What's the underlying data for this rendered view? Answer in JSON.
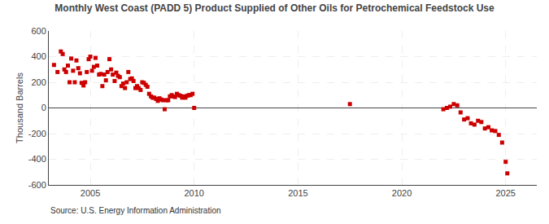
{
  "chart_data": {
    "type": "scatter",
    "title": "Monthly West Coast (PADD 5) Product Supplied of Other Oils for Petrochemical Feedstock Use",
    "ylabel": "Thousand Barrels",
    "annotations": [
      "Source: U.S. Energy Information Administration"
    ],
    "color": "#cc0000",
    "marker": "square",
    "grid": true,
    "xlim": [
      2003.0,
      2026.5
    ],
    "ylim": [
      -600,
      600
    ],
    "xticks": [
      2005,
      2010,
      2015,
      2020,
      2025
    ],
    "yticks": [
      -600,
      -400,
      -200,
      0,
      200,
      400,
      600
    ],
    "x": [
      2003.25,
      2003.42,
      2003.58,
      2003.67,
      2003.75,
      2003.83,
      2003.92,
      2004.0,
      2004.08,
      2004.17,
      2004.25,
      2004.33,
      2004.42,
      2004.5,
      2004.58,
      2004.67,
      2004.75,
      2004.83,
      2004.92,
      2005.0,
      2005.08,
      2005.17,
      2005.25,
      2005.33,
      2005.42,
      2005.5,
      2005.58,
      2005.67,
      2005.75,
      2005.83,
      2005.92,
      2006.0,
      2006.08,
      2006.17,
      2006.25,
      2006.33,
      2006.42,
      2006.5,
      2006.58,
      2006.67,
      2006.75,
      2006.83,
      2006.92,
      2007.0,
      2007.08,
      2007.17,
      2007.25,
      2007.33,
      2007.42,
      2007.5,
      2007.58,
      2007.67,
      2007.75,
      2007.83,
      2007.92,
      2008.0,
      2008.08,
      2008.17,
      2008.25,
      2008.33,
      2008.42,
      2008.5,
      2008.58,
      2008.67,
      2008.75,
      2008.83,
      2008.92,
      2009.0,
      2009.08,
      2009.17,
      2009.25,
      2009.33,
      2009.42,
      2009.5,
      2009.58,
      2009.67,
      2009.75,
      2009.83,
      2009.92,
      2010.0,
      2017.5,
      2022.0,
      2022.17,
      2022.33,
      2022.5,
      2022.67,
      2022.83,
      2023.0,
      2023.17,
      2023.33,
      2023.5,
      2023.67,
      2023.83,
      2024.0,
      2024.17,
      2024.33,
      2024.5,
      2024.67,
      2024.83,
      2025.0,
      2025.08
    ],
    "values": [
      335,
      280,
      440,
      420,
      300,
      280,
      330,
      200,
      385,
      290,
      200,
      370,
      310,
      270,
      195,
      175,
      200,
      280,
      380,
      400,
      290,
      320,
      390,
      330,
      260,
      265,
      170,
      260,
      215,
      280,
      380,
      300,
      260,
      210,
      275,
      250,
      240,
      170,
      190,
      155,
      200,
      280,
      225,
      230,
      210,
      155,
      170,
      155,
      140,
      200,
      195,
      180,
      165,
      110,
      90,
      80,
      80,
      70,
      55,
      75,
      65,
      60,
      -10,
      60,
      60,
      90,
      100,
      90,
      85,
      110,
      100,
      95,
      80,
      90,
      80,
      95,
      100,
      100,
      110,
      0,
      30,
      -10,
      0,
      10,
      30,
      20,
      -35,
      -90,
      -80,
      -120,
      -130,
      -100,
      -110,
      -160,
      -150,
      -175,
      -180,
      -210,
      -270,
      -420,
      -510
    ]
  }
}
